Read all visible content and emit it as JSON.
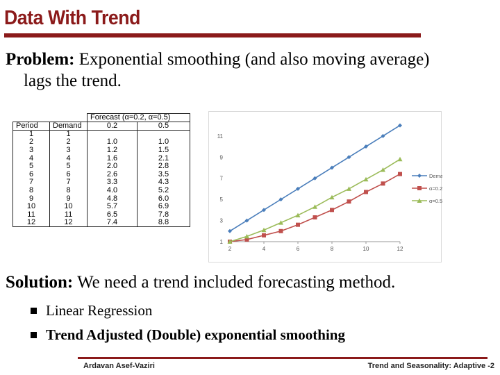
{
  "title": "Data With Trend",
  "problem": {
    "label": "Problem:",
    "text_line1": " Exponential smoothing (and also moving average)",
    "text_line2": "lags the trend."
  },
  "table": {
    "group_header": "Forecast (α=0.2, α=0.5)",
    "headers": [
      "Period",
      "Demand",
      "0.2",
      "0.5"
    ],
    "rows": [
      [
        "1",
        "1",
        "",
        ""
      ],
      [
        "2",
        "2",
        "1.0",
        "1.0"
      ],
      [
        "3",
        "3",
        "1.2",
        "1.5"
      ],
      [
        "4",
        "4",
        "1.6",
        "2.1"
      ],
      [
        "5",
        "5",
        "2.0",
        "2.8"
      ],
      [
        "6",
        "6",
        "2.6",
        "3.5"
      ],
      [
        "7",
        "7",
        "3.3",
        "4.3"
      ],
      [
        "8",
        "8",
        "4.0",
        "5.2"
      ],
      [
        "9",
        "9",
        "4.8",
        "6.0"
      ],
      [
        "10",
        "10",
        "5.7",
        "6.9"
      ],
      [
        "11",
        "11",
        "6.5",
        "7.8"
      ],
      [
        "12",
        "12",
        "7.4",
        "8.8"
      ]
    ]
  },
  "chart_data": {
    "type": "line",
    "x": [
      2,
      3,
      4,
      5,
      6,
      7,
      8,
      9,
      10,
      11,
      12
    ],
    "xticks": [
      2,
      4,
      6,
      8,
      10,
      12
    ],
    "yticks": [
      1,
      3,
      5,
      7,
      9,
      11
    ],
    "xlim": [
      2,
      12
    ],
    "ylim": [
      1,
      12.5
    ],
    "legend_position": "right",
    "series": [
      {
        "name": "Demand",
        "color": "#4a7ebb",
        "marker": "diamond",
        "values": [
          2,
          3,
          4,
          5,
          6,
          7,
          8,
          9,
          10,
          11,
          12
        ]
      },
      {
        "name": "α=0.2",
        "color": "#c0504d",
        "marker": "square",
        "values": [
          1.0,
          1.2,
          1.6,
          2.0,
          2.6,
          3.3,
          4.0,
          4.8,
          5.7,
          6.5,
          7.4
        ]
      },
      {
        "name": "α=0.5",
        "color": "#9bbb59",
        "marker": "triangle",
        "values": [
          1.0,
          1.5,
          2.1,
          2.8,
          3.5,
          4.3,
          5.2,
          6.0,
          6.9,
          7.8,
          8.8
        ]
      }
    ]
  },
  "solution": {
    "label": "Solution:",
    "text": " We need a trend included forecasting method."
  },
  "bullets": [
    "Linear Regression",
    "Trend Adjusted (Double) exponential smoothing"
  ],
  "footer": {
    "left": "Ardavan Asef-Vaziri",
    "right": "Trend and Seasonality: Adaptive -2"
  }
}
